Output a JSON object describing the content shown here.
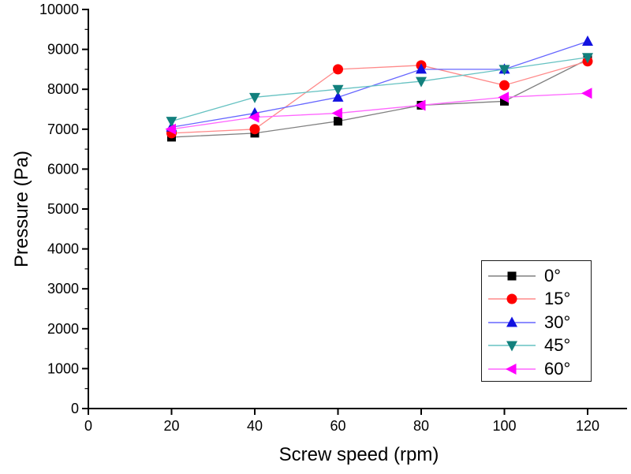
{
  "figure": {
    "background": "#ffffff",
    "text_color": "#000000",
    "axis_color": "#000000"
  },
  "chart_data": {
    "type": "line",
    "title": "",
    "xlabel": "Screw speed (rpm)",
    "ylabel": "Pressure (Pa)",
    "x": [
      20,
      40,
      60,
      80,
      100,
      120
    ],
    "x_ticks": [
      0,
      20,
      40,
      60,
      80,
      100,
      120
    ],
    "xlim": [
      0,
      130
    ],
    "ylim": [
      0,
      10000
    ],
    "y_major_tick_step": 1000,
    "y_minor_tick_step": 500,
    "grid": false,
    "legend_position": "middle-right",
    "series": [
      {
        "name": "0°",
        "marker": "square",
        "marker_color": "#000000",
        "line_color": "#808080",
        "values": [
          6800,
          6900,
          7200,
          7600,
          7700,
          8750
        ]
      },
      {
        "name": "15°",
        "marker": "circle",
        "marker_color": "#ff0000",
        "line_color": "#ff8a8a",
        "values": [
          6900,
          7000,
          8500,
          8600,
          8100,
          8700
        ]
      },
      {
        "name": "30°",
        "marker": "triangle-up",
        "marker_color": "#1212e0",
        "line_color": "#6666ff",
        "values": [
          7050,
          7400,
          7800,
          8500,
          8500,
          9200
        ]
      },
      {
        "name": "45°",
        "marker": "triangle-down",
        "marker_color": "#12807d",
        "line_color": "#66c2c2",
        "values": [
          7200,
          7800,
          8000,
          8200,
          8500,
          8800
        ]
      },
      {
        "name": "60°",
        "marker": "triangle-left",
        "marker_color": "#ff00ff",
        "line_color": "#ff66ff",
        "values": [
          7000,
          7300,
          7400,
          7600,
          7800,
          7900
        ]
      }
    ]
  }
}
